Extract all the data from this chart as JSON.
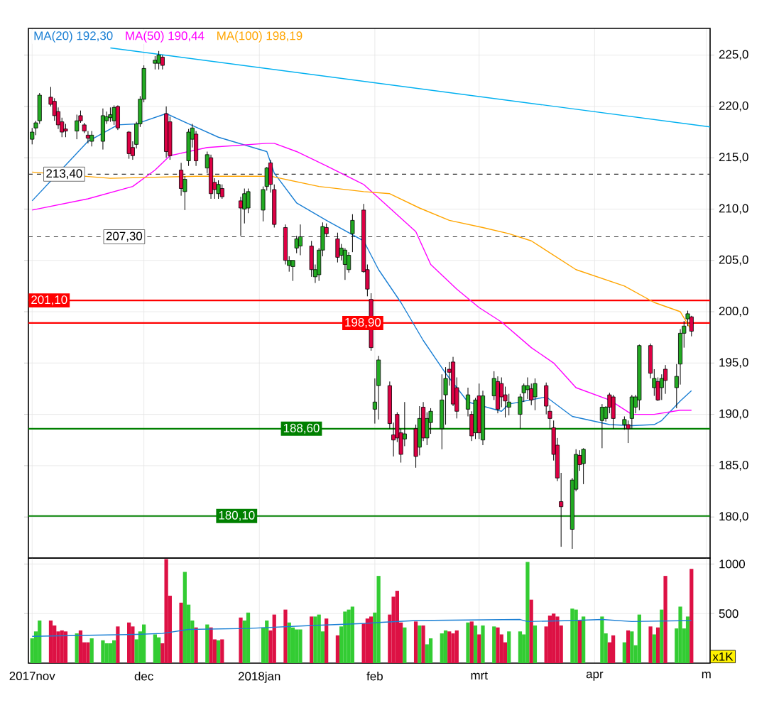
{
  "chart_data": [
    {
      "type": "candlestick",
      "x": [
        "2017-11-01",
        "2017-11-02",
        "2017-11-03",
        "2017-11-06",
        "2017-11-07",
        "2017-11-08",
        "2017-11-09",
        "2017-11-10",
        "2017-11-13",
        "2017-11-14",
        "2017-11-15",
        "2017-11-16",
        "2017-11-17",
        "2017-11-20",
        "2017-11-21",
        "2017-11-22",
        "2017-11-23",
        "2017-11-24",
        "2017-11-27",
        "2017-11-28",
        "2017-11-29",
        "2017-11-30",
        "2017-12-01",
        "2017-12-04",
        "2017-12-05",
        "2017-12-06",
        "2017-12-07",
        "2017-12-08",
        "2017-12-11",
        "2017-12-12",
        "2017-12-13",
        "2017-12-14",
        "2017-12-15",
        "2017-12-18",
        "2017-12-19",
        "2017-12-20",
        "2017-12-21",
        "2017-12-22",
        "2017-12-27",
        "2017-12-28",
        "2017-12-29",
        "2018-01-02",
        "2018-01-03",
        "2018-01-04",
        "2018-01-05",
        "2018-01-08",
        "2018-01-09",
        "2018-01-10",
        "2018-01-11",
        "2018-01-12",
        "2018-01-15",
        "2018-01-16",
        "2018-01-17",
        "2018-01-18",
        "2018-01-19",
        "2018-01-22",
        "2018-01-23",
        "2018-01-24",
        "2018-01-25",
        "2018-01-26",
        "2018-01-29",
        "2018-01-30",
        "2018-01-31",
        "2018-02-01",
        "2018-02-02",
        "2018-02-05",
        "2018-02-06",
        "2018-02-07",
        "2018-02-08",
        "2018-02-09",
        "2018-02-12",
        "2018-02-13",
        "2018-02-14",
        "2018-02-15",
        "2018-02-16",
        "2018-02-19",
        "2018-02-20",
        "2018-02-21",
        "2018-02-22",
        "2018-02-23",
        "2018-02-26",
        "2018-02-27",
        "2018-02-28",
        "2018-03-01",
        "2018-03-02",
        "2018-03-05",
        "2018-03-06",
        "2018-03-07",
        "2018-03-08",
        "2018-03-09",
        "2018-03-12",
        "2018-03-13",
        "2018-03-14",
        "2018-03-15",
        "2018-03-16",
        "2018-03-19",
        "2018-03-20",
        "2018-03-21",
        "2018-03-22",
        "2018-03-23",
        "2018-03-26",
        "2018-03-27",
        "2018-03-28",
        "2018-03-29",
        "2018-04-03",
        "2018-04-04",
        "2018-04-05",
        "2018-04-06",
        "2018-04-09",
        "2018-04-10",
        "2018-04-11",
        "2018-04-12",
        "2018-04-13",
        "2018-04-16",
        "2018-04-17",
        "2018-04-18",
        "2018-04-19",
        "2018-04-20",
        "2018-04-23",
        "2018-04-24",
        "2018-04-25",
        "2018-04-26",
        "2018-04-27"
      ],
      "ohlc": [
        [
          216.8,
          217.9,
          216.3,
          217.5
        ],
        [
          217.9,
          218.6,
          217.2,
          218.4
        ],
        [
          218.6,
          221.3,
          218.3,
          221.1
        ],
        [
          220.9,
          221.9,
          220.0,
          220.2
        ],
        [
          220.5,
          220.8,
          218.6,
          219.1
        ],
        [
          219.5,
          219.9,
          217.8,
          218.2
        ],
        [
          218.5,
          218.9,
          217.0,
          217.5
        ],
        [
          217.8,
          218.3,
          217.0,
          217.6
        ],
        [
          217.6,
          219.2,
          216.8,
          218.6
        ],
        [
          219.1,
          219.6,
          218.4,
          218.6
        ],
        [
          218.2,
          218.4,
          217.4,
          217.6
        ],
        [
          217.2,
          217.6,
          216.4,
          216.9
        ],
        [
          216.6,
          217.6,
          216.1,
          217.2
        ],
        [
          216.6,
          219.8,
          215.8,
          219.1
        ],
        [
          218.6,
          219.5,
          218.3,
          219.0
        ],
        [
          218.9,
          219.9,
          218.5,
          219.2
        ],
        [
          218.6,
          220.1,
          218.2,
          219.9
        ],
        [
          220.0,
          220.1,
          217.7,
          217.9
        ],
        [
          217.5,
          217.6,
          214.9,
          215.4
        ],
        [
          216.0,
          216.6,
          214.8,
          215.2
        ],
        [
          216.3,
          218.5,
          215.9,
          218.3
        ],
        [
          218.3,
          221.0,
          218.0,
          220.7
        ],
        [
          220.7,
          224.0,
          220.4,
          223.7
        ],
        [
          224.2,
          224.9,
          223.6,
          224.5
        ],
        [
          224.2,
          225.4,
          223.6,
          225.0
        ],
        [
          224.8,
          225.0,
          223.6,
          224.0
        ],
        [
          219.3,
          220.0,
          215.0,
          215.6
        ],
        [
          218.5,
          219.0,
          214.8,
          215.2
        ],
        [
          213.8,
          214.5,
          211.3,
          212.0
        ],
        [
          211.7,
          213.2,
          209.9,
          212.9
        ],
        [
          214.7,
          217.8,
          214.2,
          217.5
        ],
        [
          216.8,
          218.3,
          216.0,
          217.9
        ],
        [
          217.3,
          217.6,
          214.2,
          214.7
        ],
        [
          214.0,
          215.6,
          213.5,
          215.3
        ],
        [
          215.0,
          215.3,
          211.0,
          211.5
        ],
        [
          212.6,
          213.0,
          211.0,
          211.9
        ],
        [
          211.5,
          212.8,
          211.0,
          212.4
        ],
        [
          212.0,
          212.4,
          211.0,
          211.2
        ],
        [
          210.8,
          211.2,
          207.4,
          210.1
        ],
        [
          210.0,
          212.0,
          208.6,
          211.5
        ],
        [
          210.1,
          212.0,
          209.6,
          211.7
        ],
        [
          209.9,
          212.2,
          208.8,
          211.9
        ],
        [
          212.2,
          214.1,
          211.8,
          214.0
        ],
        [
          214.5,
          214.8,
          211.6,
          212.4
        ],
        [
          211.9,
          212.4,
          208.2,
          208.5
        ],
        [
          208.2,
          208.5,
          204.6,
          205.0
        ],
        [
          204.5,
          205.4,
          203.9,
          205.0
        ],
        [
          204.4,
          205.0,
          203.0,
          205.0
        ],
        [
          206.2,
          207.4,
          205.7,
          207.1
        ],
        [
          206.4,
          208.5,
          205.5,
          207.3
        ],
        [
          206.4,
          206.9,
          203.4,
          204.1
        ],
        [
          203.4,
          204.6,
          202.8,
          204.1
        ],
        [
          203.6,
          206.2,
          203.0,
          206.0
        ],
        [
          206.0,
          208.7,
          205.4,
          208.3
        ],
        [
          208.2,
          208.6,
          207.3,
          207.6
        ],
        [
          207.1,
          207.7,
          204.8,
          205.3
        ],
        [
          205.5,
          206.6,
          205.0,
          206.2
        ],
        [
          204.6,
          206.2,
          203.1,
          206.0
        ],
        [
          204.1,
          205.8,
          203.8,
          205.5
        ],
        [
          207.6,
          209.5,
          205.8,
          208.9
        ],
        [
          209.9,
          210.5,
          203.8,
          203.9
        ],
        [
          204.1,
          204.6,
          201.5,
          202.2
        ],
        [
          201.2,
          201.8,
          196.2,
          196.5
        ],
        [
          190.5,
          193.5,
          189.1,
          191.2
        ],
        [
          192.8,
          195.7,
          189.5,
          195.3
        ],
        [
          192.8,
          193.2,
          188.6,
          189.1
        ],
        [
          188.0,
          189.2,
          185.9,
          187.5
        ],
        [
          190.0,
          190.2,
          187.3,
          187.7
        ],
        [
          188.2,
          188.6,
          185.3,
          186.1
        ],
        [
          187.6,
          191.2,
          186.9,
          188.1
        ],
        [
          188.6,
          189.0,
          184.8,
          185.9
        ],
        [
          186.8,
          190.8,
          186.0,
          189.6
        ],
        [
          190.7,
          191.2,
          187.4,
          187.7
        ],
        [
          187.7,
          190.2,
          187.0,
          189.6
        ],
        [
          189.2,
          190.6,
          188.1,
          190.3
        ],
        [
          188.6,
          193.9,
          186.6,
          191.4
        ],
        [
          191.9,
          194.6,
          189.0,
          193.5
        ],
        [
          194.4,
          195.1,
          192.8,
          194.1
        ],
        [
          195.1,
          195.6,
          190.8,
          191.0
        ],
        [
          192.6,
          193.6,
          189.6,
          190.3
        ],
        [
          190.5,
          192.6,
          189.8,
          191.9
        ],
        [
          190.0,
          190.3,
          187.4,
          187.9
        ],
        [
          188.2,
          191.6,
          187.6,
          191.4
        ],
        [
          191.8,
          193.0,
          187.6,
          188.2
        ],
        [
          187.5,
          192.3,
          187.0,
          191.8
        ],
        [
          191.8,
          194.2,
          191.4,
          193.5
        ],
        [
          193.2,
          193.7,
          190.1,
          190.5
        ],
        [
          193.0,
          193.6,
          190.7,
          191.7
        ],
        [
          191.9,
          192.7,
          189.7,
          191.3
        ],
        [
          190.7,
          192.0,
          189.9,
          191.2
        ],
        [
          190.0,
          192.0,
          188.6,
          191.7
        ],
        [
          192.1,
          193.0,
          191.2,
          192.8
        ],
        [
          192.4,
          193.6,
          191.5,
          192.8
        ],
        [
          192.5,
          193.0,
          190.9,
          191.4
        ],
        [
          191.7,
          193.5,
          190.4,
          193.0
        ],
        [
          192.8,
          193.1,
          190.0,
          190.8
        ],
        [
          190.3,
          190.9,
          188.6,
          189.6
        ],
        [
          188.7,
          189.4,
          185.5,
          186.1
        ],
        [
          187.0,
          187.7,
          183.5,
          183.8
        ],
        [
          181.5,
          184.3,
          177.1,
          181.0
        ],
        [
          178.8,
          183.8,
          176.9,
          183.6
        ],
        [
          182.7,
          186.6,
          182.5,
          186.1
        ],
        [
          186.0,
          186.5,
          184.5,
          185.1
        ],
        [
          185.2,
          186.7,
          183.2,
          186.6
        ],
        [
          189.4,
          191.0,
          186.7,
          190.7
        ],
        [
          189.6,
          190.8,
          189.3,
          190.7
        ],
        [
          191.9,
          192.1,
          190.1,
          190.7
        ],
        [
          191.7,
          191.9,
          188.6,
          189.6
        ],
        [
          189.0,
          189.8,
          188.5,
          189.5
        ],
        [
          189.0,
          189.4,
          187.2,
          188.6
        ],
        [
          189.6,
          191.9,
          188.6,
          191.7
        ],
        [
          190.7,
          191.9,
          190.1,
          191.7
        ],
        [
          191.4,
          196.8,
          190.4,
          196.7
        ],
        [
          196.7,
          196.9,
          193.5,
          194.0
        ],
        [
          192.6,
          194.4,
          191.8,
          193.5
        ],
        [
          193.2,
          193.6,
          191.3,
          191.4
        ],
        [
          192.6,
          193.9,
          191.4,
          193.5
        ],
        [
          194.4,
          194.8,
          192.0,
          193.3
        ],
        [
          192.6,
          194.9,
          190.6,
          193.7
        ],
        [
          194.9,
          198.3,
          192.9,
          197.9
        ],
        [
          197.9,
          199.1,
          196.5,
          198.6
        ],
        [
          199.3,
          200.1,
          198.6,
          199.8
        ],
        [
          199.5,
          199.6,
          197.6,
          198.1
        ]
      ],
      "series": [
        {
          "name": "MA(20) 192,30",
          "type": "line",
          "color": "#1a7fd4",
          "x": [
            "2017-11-01",
            "2017-11-16",
            "2017-11-24",
            "2017-11-29",
            "2017-12-07",
            "2017-12-13",
            "2017-12-21",
            "2018-01-03",
            "2018-01-05",
            "2018-01-11",
            "2018-01-19",
            "2018-01-29",
            "2018-02-02",
            "2018-02-08",
            "2018-02-14",
            "2018-02-20",
            "2018-02-26",
            "2018-03-07",
            "2018-03-09",
            "2018-03-19",
            "2018-03-26",
            "2018-04-05",
            "2018-04-11",
            "2018-04-17",
            "2018-04-19",
            "2018-04-24",
            "2018-04-27"
          ],
          "values": [
            210.8,
            216.6,
            218.2,
            218.3,
            219.3,
            218.3,
            217,
            215.6,
            213.5,
            210.6,
            208.9,
            206.9,
            204.1,
            200.9,
            197.2,
            194,
            191.2,
            190.3,
            191,
            191.7,
            189.8,
            189,
            188.9,
            189,
            189.4,
            191.3,
            192.3
          ]
        },
        {
          "name": "MA(50) 190,44",
          "type": "line",
          "color": "#ff00ff",
          "x": [
            "2017-11-01",
            "2017-11-16",
            "2017-11-28",
            "2017-12-04",
            "2017-12-08",
            "2017-12-18",
            "2018-01-03",
            "2018-01-05",
            "2018-01-11",
            "2018-01-19",
            "2018-01-29",
            "2018-02-05",
            "2018-02-12",
            "2018-02-16",
            "2018-02-23",
            "2018-03-01",
            "2018-03-07",
            "2018-03-15",
            "2018-03-21",
            "2018-03-27",
            "2018-04-05",
            "2018-04-11",
            "2018-04-17",
            "2018-04-24",
            "2018-04-27"
          ],
          "values": [
            209.9,
            211,
            212.2,
            213.8,
            215.2,
            216,
            216.4,
            216.4,
            215.6,
            214.2,
            212.4,
            210.1,
            207.8,
            204.6,
            202.2,
            200.4,
            199,
            196.5,
            195,
            192.6,
            191.4,
            190,
            190,
            190.4,
            190.4
          ]
        },
        {
          "name": "MA(100) 198,19",
          "type": "line",
          "color": "#ffa500",
          "x": [
            "2017-11-01",
            "2017-11-22",
            "2017-12-04",
            "2017-12-15",
            "2018-01-04",
            "2018-01-17",
            "2018-01-29",
            "2018-02-05",
            "2018-02-13",
            "2018-02-21",
            "2018-03-02",
            "2018-03-09",
            "2018-03-15",
            "2018-03-27",
            "2018-04-09",
            "2018-04-17",
            "2018-04-24",
            "2018-04-27"
          ],
          "values": [
            213.6,
            213,
            213.1,
            213.2,
            213.2,
            212.2,
            211.7,
            211.5,
            210.1,
            208.9,
            208.2,
            207.6,
            206.9,
            204.1,
            202.5,
            200.9,
            200,
            198.2
          ]
        },
        {
          "type": "line",
          "color": "#00b0f0",
          "x": [
            "2017-11-22",
            "2018-05-02"
          ],
          "values": [
            225.7,
            218.0
          ]
        }
      ],
      "ref_lines": [
        {
          "axis": "y",
          "value": 213.4,
          "label": "213,40",
          "color": "#333333",
          "line_style": "dashed"
        },
        {
          "axis": "y",
          "value": 207.3,
          "label": "207,30",
          "color": "#333333",
          "line_style": "dashed"
        },
        {
          "axis": "y",
          "value": 201.1,
          "label": "201,10",
          "color": "#ff0000",
          "line_style": "solid"
        },
        {
          "axis": "y",
          "value": 198.9,
          "label": "198,90",
          "color": "#ff0000",
          "line_style": "solid"
        },
        {
          "axis": "y",
          "value": 188.6,
          "label": "188,60",
          "color": "#008000",
          "line_style": "solid"
        },
        {
          "axis": "y",
          "value": 180.1,
          "label": "180,10",
          "color": "#008000",
          "line_style": "solid"
        }
      ],
      "xlim": [
        "2017-10-31",
        "2018-05-02"
      ],
      "xticks": [
        {
          "value": "2017-11-01",
          "label": null
        },
        {
          "value": "2017-12-01",
          "label": null
        },
        {
          "value": "2018-01-01",
          "label": null
        },
        {
          "value": "2018-02-01",
          "label": null
        },
        {
          "value": "2018-03-01",
          "label": null
        },
        {
          "value": "2018-04-01",
          "label": null
        },
        {
          "value": "2018-05-01",
          "label": null
        }
      ],
      "ylim": [
        176,
        227.6
      ],
      "yticks": [
        {
          "value": 180,
          "label": "180,0"
        },
        {
          "value": 185,
          "label": "185,0"
        },
        {
          "value": 190,
          "label": "190,0"
        },
        {
          "value": 195,
          "label": "195,0"
        },
        {
          "value": 200,
          "label": "200,0"
        },
        {
          "value": 205,
          "label": "205,0"
        },
        {
          "value": 210,
          "label": "210,0"
        },
        {
          "value": 215,
          "label": "215,0"
        },
        {
          "value": 220,
          "label": "220,0"
        },
        {
          "value": 225,
          "label": "225,0"
        }
      ],
      "tick_labels": "y",
      "grid": true,
      "legend": "top left"
    },
    {
      "type": "bar",
      "x": [
        "2017-11-01",
        "2017-11-02",
        "2017-11-03",
        "2017-11-06",
        "2017-11-07",
        "2017-11-08",
        "2017-11-09",
        "2017-11-10",
        "2017-11-13",
        "2017-11-14",
        "2017-11-15",
        "2017-11-16",
        "2017-11-17",
        "2017-11-20",
        "2017-11-21",
        "2017-11-22",
        "2017-11-23",
        "2017-11-24",
        "2017-11-27",
        "2017-11-28",
        "2017-11-29",
        "2017-11-30",
        "2017-12-01",
        "2017-12-04",
        "2017-12-05",
        "2017-12-06",
        "2017-12-07",
        "2017-12-08",
        "2017-12-11",
        "2017-12-12",
        "2017-12-13",
        "2017-12-14",
        "2017-12-15",
        "2017-12-18",
        "2017-12-19",
        "2017-12-20",
        "2017-12-21",
        "2017-12-22",
        "2017-12-27",
        "2017-12-28",
        "2017-12-29",
        "2018-01-02",
        "2018-01-03",
        "2018-01-04",
        "2018-01-05",
        "2018-01-08",
        "2018-01-09",
        "2018-01-10",
        "2018-01-11",
        "2018-01-12",
        "2018-01-15",
        "2018-01-16",
        "2018-01-17",
        "2018-01-18",
        "2018-01-19",
        "2018-01-22",
        "2018-01-23",
        "2018-01-24",
        "2018-01-25",
        "2018-01-26",
        "2018-01-29",
        "2018-01-30",
        "2018-01-31",
        "2018-02-01",
        "2018-02-02",
        "2018-02-05",
        "2018-02-06",
        "2018-02-07",
        "2018-02-08",
        "2018-02-09",
        "2018-02-12",
        "2018-02-13",
        "2018-02-14",
        "2018-02-15",
        "2018-02-16",
        "2018-02-19",
        "2018-02-20",
        "2018-02-21",
        "2018-02-22",
        "2018-02-23",
        "2018-02-26",
        "2018-02-27",
        "2018-02-28",
        "2018-03-01",
        "2018-03-02",
        "2018-03-05",
        "2018-03-06",
        "2018-03-07",
        "2018-03-08",
        "2018-03-09",
        "2018-03-12",
        "2018-03-13",
        "2018-03-14",
        "2018-03-15",
        "2018-03-16",
        "2018-03-19",
        "2018-03-20",
        "2018-03-21",
        "2018-03-22",
        "2018-03-23",
        "2018-03-26",
        "2018-03-27",
        "2018-03-28",
        "2018-03-29",
        "2018-04-03",
        "2018-04-04",
        "2018-04-05",
        "2018-04-06",
        "2018-04-09",
        "2018-04-10",
        "2018-04-11",
        "2018-04-12",
        "2018-04-13",
        "2018-04-16",
        "2018-04-17",
        "2018-04-18",
        "2018-04-19",
        "2018-04-20",
        "2018-04-23",
        "2018-04-24",
        "2018-04-25",
        "2018-04-26",
        "2018-04-27"
      ],
      "values": [
        250,
        320,
        430,
        430,
        380,
        320,
        330,
        320,
        300,
        330,
        210,
        210,
        250,
        230,
        200,
        200,
        230,
        370,
        410,
        370,
        240,
        320,
        390,
        290,
        260,
        200,
        1050,
        680,
        610,
        920,
        590,
        430,
        360,
        390,
        360,
        240,
        230,
        240,
        460,
        430,
        510,
        360,
        430,
        330,
        490,
        540,
        410,
        360,
        340,
        340,
        470,
        470,
        490,
        320,
        450,
        280,
        370,
        520,
        540,
        570,
        400,
        450,
        470,
        510,
        880,
        490,
        670,
        730,
        410,
        360,
        420,
        380,
        380,
        190,
        250,
        300,
        330,
        320,
        300,
        330,
        410,
        420,
        380,
        290,
        380,
        370,
        360,
        290,
        210,
        320,
        320,
        290,
        1020,
        640,
        380,
        370,
        480,
        500,
        470,
        380,
        550,
        540,
        430,
        470,
        470,
        300,
        210,
        280,
        210,
        330,
        320,
        180,
        490,
        370,
        290,
        360,
        540,
        880,
        350,
        570,
        350,
        470,
        950
      ],
      "colors": [
        "#33cc33",
        "#33cc33",
        "#33cc33",
        "#dd1144",
        "#dd1144",
        "#dd1144",
        "#dd1144",
        "#dd1144",
        "#33cc33",
        "#dd1144",
        "#dd1144",
        "#dd1144",
        "#33cc33",
        "#33cc33",
        "#33cc33",
        "#33cc33",
        "#33cc33",
        "#dd1144",
        "#dd1144",
        "#dd1144",
        "#33cc33",
        "#33cc33",
        "#33cc33",
        "#33cc33",
        "#33cc33",
        "#dd1144",
        "#dd1144",
        "#dd1144",
        "#dd1144",
        "#33cc33",
        "#33cc33",
        "#33cc33",
        "#dd1144",
        "#33cc33",
        "#dd1144",
        "#dd1144",
        "#33cc33",
        "#dd1144",
        "#dd1144",
        "#33cc33",
        "#33cc33",
        "#33cc33",
        "#33cc33",
        "#dd1144",
        "#dd1144",
        "#dd1144",
        "#33cc33",
        "#33cc33",
        "#33cc33",
        "#33cc33",
        "#dd1144",
        "#33cc33",
        "#33cc33",
        "#33cc33",
        "#dd1144",
        "#dd1144",
        "#33cc33",
        "#33cc33",
        "#33cc33",
        "#33cc33",
        "#dd1144",
        "#dd1144",
        "#dd1144",
        "#33cc33",
        "#33cc33",
        "#dd1144",
        "#dd1144",
        "#dd1144",
        "#dd1144",
        "#33cc33",
        "#dd1144",
        "#33cc33",
        "#dd1144",
        "#33cc33",
        "#33cc33",
        "#33cc33",
        "#33cc33",
        "#dd1144",
        "#dd1144",
        "#dd1144",
        "#33cc33",
        "#dd1144",
        "#33cc33",
        "#dd1144",
        "#33cc33",
        "#33cc33",
        "#dd1144",
        "#dd1144",
        "#dd1144",
        "#33cc33",
        "#33cc33",
        "#33cc33",
        "#33cc33",
        "#dd1144",
        "#33cc33",
        "#dd1144",
        "#dd1144",
        "#dd1144",
        "#dd1144",
        "#dd1144",
        "#33cc33",
        "#33cc33",
        "#dd1144",
        "#33cc33",
        "#33cc33",
        "#33cc33",
        "#dd1144",
        "#dd1144",
        "#33cc33",
        "#dd1144",
        "#33cc33",
        "#33cc33",
        "#33cc33",
        "#dd1144",
        "#33cc33",
        "#dd1144",
        "#33cc33",
        "#dd1144",
        "#33cc33",
        "#33cc33",
        "#33cc33",
        "#33cc33",
        "#dd1144"
      ],
      "series": [
        {
          "type": "line",
          "color": "#1a7fd4",
          "x": [
            "2017-11-01",
            "2017-11-29",
            "2017-12-06",
            "2017-12-13",
            "2017-12-29",
            "2018-01-15",
            "2018-01-29",
            "2018-02-02",
            "2018-02-12",
            "2018-03-12",
            "2018-03-14",
            "2018-03-26",
            "2018-04-03",
            "2018-04-11",
            "2018-04-27"
          ],
          "values": [
            270,
            290,
            300,
            340,
            350,
            380,
            400,
            410,
            430,
            440,
            420,
            430,
            440,
            420,
            430
          ]
        }
      ],
      "ylabel": "x1K",
      "xlim": [
        "2017-10-31",
        "2018-05-02"
      ],
      "xticks": [
        {
          "value": "2017-11-01",
          "label": "2017nov"
        },
        {
          "value": "2017-12-01",
          "label": "dec"
        },
        {
          "value": "2018-01-01",
          "label": "2018jan"
        },
        {
          "value": "2018-02-01",
          "label": "feb"
        },
        {
          "value": "2018-03-01",
          "label": "mrt"
        },
        {
          "value": "2018-04-01",
          "label": "apr"
        },
        {
          "value": "2018-05-01",
          "label": "m"
        }
      ],
      "ylim": [
        0,
        1060
      ],
      "yticks": [
        500,
        1000
      ],
      "grid": true
    }
  ]
}
